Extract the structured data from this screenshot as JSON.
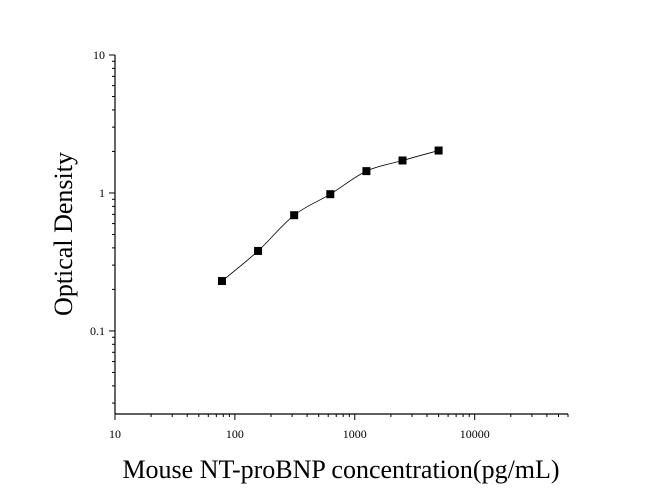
{
  "chart_data": {
    "type": "scatter",
    "title": "",
    "xlabel": "Mouse NT-proBNP concentration(pg/mL)",
    "ylabel": "Optical Density",
    "x_scale": "log",
    "y_scale": "log",
    "xlim": [
      10,
      60000
    ],
    "ylim": [
      0.025,
      10
    ],
    "x_ticks": [
      10,
      100,
      1000,
      10000
    ],
    "x_tick_labels": [
      "10",
      "100",
      "1000",
      "10000"
    ],
    "y_ticks": [
      0.1,
      1,
      10
    ],
    "y_tick_labels": [
      "0.1",
      "1",
      "10"
    ],
    "grid": false,
    "legend": "none",
    "series": [
      {
        "x": [
          78,
          156,
          312,
          625,
          1250,
          2500,
          5000
        ],
        "y": [
          0.23,
          0.38,
          0.69,
          0.98,
          1.44,
          1.72,
          2.03
        ],
        "marker": "square",
        "fit_curve": true
      }
    ],
    "colors": {
      "marker": "#000000",
      "curve": "#000000",
      "axis": "#000000"
    }
  }
}
